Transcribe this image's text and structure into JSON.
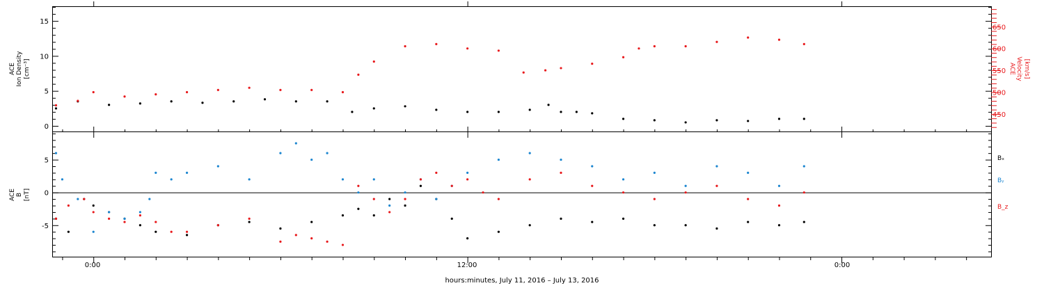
{
  "figure": {
    "xlabel": "hours:minutes, July 11, 2016 – July 13, 2016",
    "x_ticks": [
      "0:00",
      "12:00",
      "0:00"
    ]
  },
  "colors": {
    "black": "#000000",
    "red": "#e8191c",
    "blue": "#1c86d0"
  },
  "chart_data": [
    {
      "type": "scatter",
      "panel": "top",
      "x_unit": "hours from 2016-07-11 00:00",
      "xlim": [
        -1.3,
        28.8
      ],
      "y_left": {
        "label_lines": [
          "ACE",
          "Ion Density",
          "[cm⁻³]"
        ],
        "ylim": [
          -0.8,
          17
        ],
        "ticks": [
          "0",
          "5",
          "10",
          "15"
        ]
      },
      "y_right": {
        "label_lines": [
          "ACE",
          "Velocity",
          "[km/s]"
        ],
        "ylim": [
          410,
          695
        ],
        "ticks": [
          "450",
          "500",
          "550",
          "600",
          "650"
        ]
      },
      "series": [
        {
          "name": "Ion Density",
          "color": "#000000",
          "axis": "left",
          "x": [
            -1.2,
            -0.5,
            0.5,
            1.5,
            2.5,
            3.5,
            4.5,
            5.5,
            6.5,
            7.5,
            8.3,
            9.0,
            10.0,
            11.0,
            12.0,
            13.0,
            14.0,
            14.6,
            15.0,
            15.5,
            16.0,
            17.0,
            18.0,
            19.0,
            20.0,
            21.0,
            22.0,
            22.8
          ],
          "y": [
            2.5,
            3.5,
            3.0,
            3.2,
            3.5,
            3.3,
            3.5,
            3.8,
            3.5,
            3.5,
            2.0,
            2.5,
            2.8,
            2.3,
            2.0,
            2.0,
            2.3,
            3.0,
            2.0,
            2.0,
            1.8,
            1.0,
            0.8,
            0.5,
            0.8,
            0.7,
            1.0,
            1.0
          ]
        },
        {
          "name": "Velocity",
          "color": "#e8191c",
          "axis": "right",
          "x": [
            -1.2,
            -0.5,
            0.0,
            1.0,
            2.0,
            3.0,
            4.0,
            5.0,
            6.0,
            7.0,
            8.0,
            8.5,
            9.0,
            10.0,
            11.0,
            12.0,
            13.0,
            13.8,
            14.5,
            15.0,
            16.0,
            17.0,
            17.5,
            18.0,
            19.0,
            20.0,
            21.0,
            22.0,
            22.8
          ],
          "y": [
            470,
            480,
            500,
            490,
            495,
            500,
            505,
            510,
            505,
            505,
            500,
            540,
            570,
            605,
            610,
            600,
            595,
            545,
            550,
            555,
            565,
            580,
            600,
            605,
            605,
            615,
            625,
            620,
            610
          ]
        }
      ]
    },
    {
      "type": "scatter",
      "panel": "bottom",
      "x_unit": "hours from 2016-07-11 00:00",
      "xlim": [
        -1.3,
        28.8
      ],
      "ylabel_lines": [
        "ACE",
        "B",
        "[nT]"
      ],
      "ylim": [
        -9.8,
        9.2
      ],
      "y_ticks": [
        "-5",
        "0",
        "5"
      ],
      "zero_line": true,
      "legend": [
        "Bₓ",
        "Bᵧ",
        "B_z"
      ],
      "series": [
        {
          "name": "Bₓ",
          "color": "#000000",
          "x": [
            -1.2,
            -0.8,
            -0.3,
            0.0,
            0.5,
            1.0,
            1.5,
            2.0,
            3.0,
            4.0,
            5.0,
            6.0,
            7.0,
            8.0,
            8.5,
            9.0,
            9.5,
            10.0,
            10.5,
            11.0,
            11.5,
            12.0,
            13.0,
            14.0,
            15.0,
            16.0,
            17.0,
            18.0,
            19.0,
            20.0,
            21.0,
            22.0,
            22.8
          ],
          "y": [
            -4.0,
            -6.0,
            -1.0,
            -2.0,
            -3.0,
            -4.0,
            -5.0,
            -6.0,
            -6.5,
            -5.0,
            -4.5,
            -5.5,
            -4.5,
            -3.5,
            -2.5,
            -3.5,
            -1.0,
            -2.0,
            1.0,
            -1.0,
            -4.0,
            -7.0,
            -6.0,
            -5.0,
            -4.0,
            -4.5,
            -4.0,
            -5.0,
            -5.0,
            -5.5,
            -4.5,
            -5.0,
            -4.5
          ]
        },
        {
          "name": "Bᵧ",
          "color": "#1c86d0",
          "x": [
            -1.2,
            -1.0,
            -0.5,
            0.0,
            0.5,
            1.0,
            1.5,
            1.8,
            2.0,
            2.5,
            3.0,
            4.0,
            5.0,
            6.0,
            6.5,
            7.0,
            7.5,
            8.0,
            8.5,
            9.0,
            9.5,
            10.0,
            10.5,
            11.0,
            11.5,
            12.0,
            13.0,
            14.0,
            15.0,
            16.0,
            17.0,
            18.0,
            19.0,
            20.0,
            21.0,
            22.0,
            22.8
          ],
          "y": [
            6.0,
            2.0,
            -1.0,
            -6.0,
            -3.0,
            -4.0,
            -3.0,
            -1.0,
            3.0,
            2.0,
            3.0,
            4.0,
            2.0,
            6.0,
            7.5,
            5.0,
            6.0,
            2.0,
            0.0,
            2.0,
            -2.0,
            0.0,
            2.0,
            -1.0,
            1.0,
            3.0,
            5.0,
            6.0,
            5.0,
            4.0,
            2.0,
            3.0,
            1.0,
            4.0,
            3.0,
            1.0,
            4.0
          ]
        },
        {
          "name": "B_z",
          "color": "#e8191c",
          "x": [
            -1.2,
            -0.8,
            -0.3,
            0.0,
            0.5,
            1.0,
            1.5,
            2.0,
            2.5,
            3.0,
            4.0,
            5.0,
            6.0,
            6.5,
            7.0,
            7.5,
            8.0,
            8.5,
            9.0,
            9.5,
            10.0,
            10.5,
            11.0,
            11.5,
            12.0,
            12.5,
            13.0,
            14.0,
            15.0,
            16.0,
            17.0,
            18.0,
            19.0,
            20.0,
            21.0,
            22.0,
            22.8
          ],
          "y": [
            -4.0,
            -2.0,
            -1.0,
            -3.0,
            -4.0,
            -4.5,
            -3.5,
            -4.5,
            -6.0,
            -6.0,
            -5.0,
            -4.0,
            -7.5,
            -6.5,
            -7.0,
            -7.5,
            -8.0,
            1.0,
            -1.0,
            -3.0,
            -1.0,
            2.0,
            3.0,
            1.0,
            2.0,
            0.0,
            -1.0,
            2.0,
            3.0,
            1.0,
            0.0,
            -1.0,
            0.0,
            1.0,
            -1.0,
            -2.0,
            0.0
          ]
        }
      ]
    }
  ]
}
